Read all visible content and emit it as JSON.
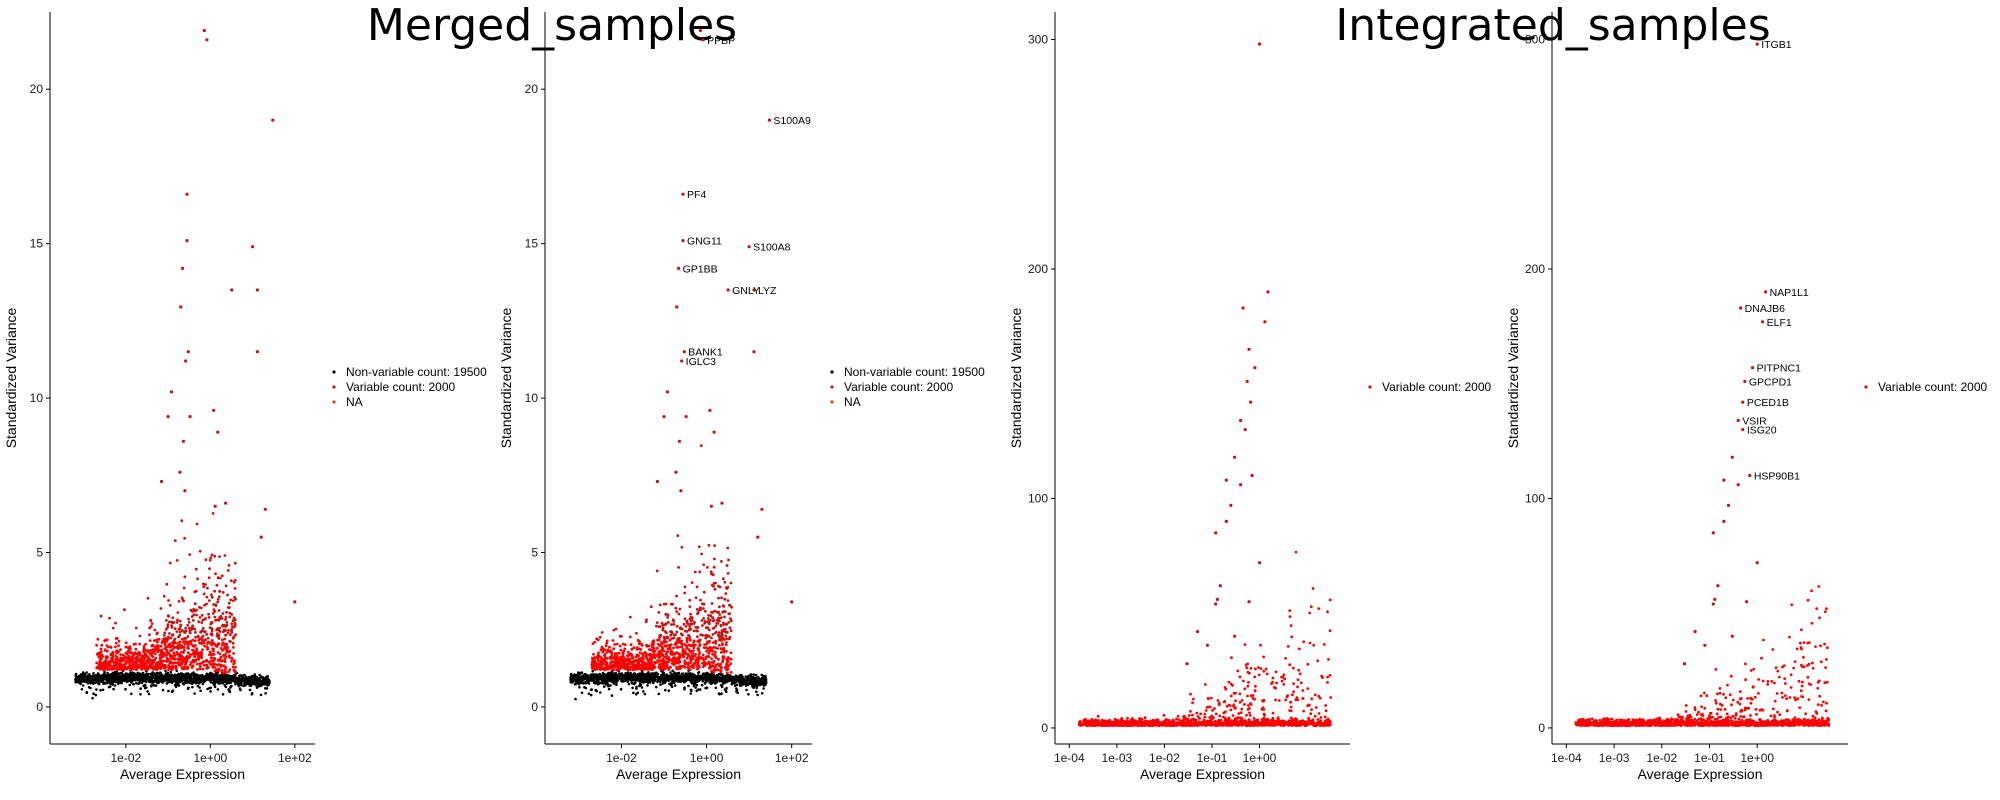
{
  "figure": {
    "titles": [
      "Merged_samples",
      "Integrated_samples"
    ]
  },
  "colors": {
    "non_variable": "#000000",
    "variable": "#cc1111",
    "variable_bright": "#ff0000",
    "na": "#ff3333",
    "axis": "#000000"
  },
  "chart_data": [
    {
      "type": "scatter",
      "title": "",
      "xlabel": "Average Expression",
      "ylabel": "Standardized Variance",
      "x_scale": "log10",
      "xlim": [
        0.00016,
        300
      ],
      "ylim": [
        -1.2,
        22.5
      ],
      "x_ticks": [
        {
          "value": 0.01,
          "label": "1e-02"
        },
        {
          "value": 1,
          "label": "1e+00"
        },
        {
          "value": 100,
          "label": "1e+02"
        }
      ],
      "y_ticks": [
        {
          "value": 0,
          "label": "0"
        },
        {
          "value": 5,
          "label": "5"
        },
        {
          "value": 10,
          "label": "10"
        },
        {
          "value": 15,
          "label": "15"
        },
        {
          "value": 20,
          "label": "20"
        }
      ],
      "legend": [
        "Non-variable count: 19500",
        "Variable count: 2000",
        "NA"
      ],
      "legend_position": "right",
      "series": [
        {
          "name": "Variable count: 2000",
          "points": [
            [
              0.72,
              21.9
            ],
            [
              0.83,
              21.6
            ],
            [
              30,
              19.0
            ],
            [
              0.28,
              16.6
            ],
            [
              0.28,
              15.1
            ],
            [
              10,
              14.9
            ],
            [
              0.22,
              14.2
            ],
            [
              3.2,
              13.5
            ],
            [
              13,
              13.5
            ],
            [
              0.2,
              12.95
            ],
            [
              0.3,
              11.5
            ],
            [
              13,
              11.5
            ],
            [
              0.26,
              11.2
            ],
            [
              0.12,
              10.2
            ],
            [
              1.2,
              9.6
            ],
            [
              0.1,
              9.4
            ],
            [
              0.33,
              9.4
            ],
            [
              1.5,
              8.9
            ],
            [
              0.23,
              8.6
            ],
            [
              0.19,
              7.6
            ],
            [
              0.07,
              7.3
            ],
            [
              0.25,
              7.0
            ],
            [
              1.3,
              6.5
            ],
            [
              2.3,
              6.6
            ],
            [
              20,
              6.4
            ],
            [
              16,
              5.5
            ],
            [
              100,
              3.4
            ]
          ]
        },
        {
          "name": "Non-variable count: 19500",
          "points": []
        },
        {
          "name": "NA",
          "points": []
        }
      ],
      "labels": []
    },
    {
      "type": "scatter",
      "title": "",
      "xlabel": "Average Expression",
      "ylabel": "Standardized Variance",
      "x_scale": "log10",
      "xlim": [
        0.00016,
        300
      ],
      "ylim": [
        -1.2,
        22.5
      ],
      "x_ticks": [
        {
          "value": 0.01,
          "label": "1e-02"
        },
        {
          "value": 1,
          "label": "1e+00"
        },
        {
          "value": 100,
          "label": "1e+02"
        }
      ],
      "y_ticks": [
        {
          "value": 0,
          "label": "0"
        },
        {
          "value": 5,
          "label": "5"
        },
        {
          "value": 10,
          "label": "10"
        },
        {
          "value": 15,
          "label": "15"
        },
        {
          "value": 20,
          "label": "20"
        }
      ],
      "legend": [
        "Non-variable count: 19500",
        "Variable count: 2000",
        "NA"
      ],
      "legend_position": "right",
      "series": [
        {
          "name": "Variable count: 2000",
          "points": [
            [
              0.72,
              21.9
            ],
            [
              0.83,
              21.6
            ],
            [
              30,
              19.0
            ],
            [
              0.28,
              16.6
            ],
            [
              0.28,
              15.1
            ],
            [
              10,
              14.9
            ],
            [
              0.22,
              14.2
            ],
            [
              3.2,
              13.5
            ],
            [
              13,
              13.5
            ],
            [
              0.2,
              12.95
            ],
            [
              0.3,
              11.5
            ],
            [
              13,
              11.5
            ],
            [
              0.26,
              11.2
            ],
            [
              0.12,
              10.2
            ],
            [
              1.2,
              9.6
            ],
            [
              0.1,
              9.4
            ],
            [
              0.33,
              9.4
            ],
            [
              1.5,
              8.9
            ],
            [
              0.23,
              8.6
            ],
            [
              0.19,
              7.6
            ],
            [
              0.07,
              7.3
            ],
            [
              0.25,
              7.0
            ],
            [
              1.3,
              6.5
            ],
            [
              2.3,
              6.6
            ],
            [
              20,
              6.4
            ],
            [
              16,
              5.5
            ],
            [
              100,
              3.4
            ]
          ]
        },
        {
          "name": "Non-variable count: 19500",
          "points": []
        },
        {
          "name": "NA",
          "points": []
        }
      ],
      "labels": [
        {
          "text": "PPBP",
          "x": 0.83,
          "y": 21.6
        },
        {
          "text": "S100A9",
          "x": 30,
          "y": 19.0
        },
        {
          "text": "PF4",
          "x": 0.28,
          "y": 16.6
        },
        {
          "text": "GNG11",
          "x": 0.28,
          "y": 15.1
        },
        {
          "text": "S100A8",
          "x": 10,
          "y": 14.9
        },
        {
          "text": "GP1BB",
          "x": 0.22,
          "y": 14.2
        },
        {
          "text": "GNLY",
          "x": 3.2,
          "y": 13.5
        },
        {
          "text": "LYZ",
          "x": 13,
          "y": 13.5
        },
        {
          "text": "BANK1",
          "x": 0.3,
          "y": 11.5
        },
        {
          "text": "IGLC3",
          "x": 0.26,
          "y": 11.2
        }
      ]
    },
    {
      "type": "scatter",
      "title": "",
      "xlabel": "Average Expression",
      "ylabel": "Standardized Variance",
      "x_scale": "log10",
      "xlim": [
        5e-05,
        80
      ],
      "ylim": [
        -7,
        312
      ],
      "x_ticks": [
        {
          "value": 0.0001,
          "label": "1e-04"
        },
        {
          "value": 0.001,
          "label": "1e-03"
        },
        {
          "value": 0.01,
          "label": "1e-02"
        },
        {
          "value": 0.1,
          "label": "1e-01"
        },
        {
          "value": 1,
          "label": "1e+00"
        }
      ],
      "y_ticks": [
        {
          "value": 0,
          "label": "0"
        },
        {
          "value": 100,
          "label": "100"
        },
        {
          "value": 200,
          "label": "200"
        },
        {
          "value": 300,
          "label": "300"
        }
      ],
      "legend": [
        "Variable count: 2000"
      ],
      "legend_position": "right",
      "series": [
        {
          "name": "Variable count: 2000",
          "points": [
            [
              1.0,
              298
            ],
            [
              1.5,
              190
            ],
            [
              1.3,
              177
            ],
            [
              0.45,
              183
            ],
            [
              0.6,
              165
            ],
            [
              0.8,
              157
            ],
            [
              0.55,
              151
            ],
            [
              0.65,
              142
            ],
            [
              0.4,
              134
            ],
            [
              0.5,
              130
            ],
            [
              0.3,
              118
            ],
            [
              0.7,
              110
            ],
            [
              0.4,
              106
            ],
            [
              0.2,
              108
            ],
            [
              0.25,
              97
            ],
            [
              0.12,
              85
            ],
            [
              0.2,
              90
            ],
            [
              1.0,
              72
            ],
            [
              0.15,
              62
            ],
            [
              0.13,
              56
            ],
            [
              0.12,
              54
            ],
            [
              0.6,
              55
            ],
            [
              0.05,
              42
            ],
            [
              0.3,
              40
            ],
            [
              0.08,
              36
            ],
            [
              0.03,
              28
            ]
          ]
        }
      ],
      "labels": []
    },
    {
      "type": "scatter",
      "title": "",
      "xlabel": "Average Expression",
      "ylabel": "Standardized Variance",
      "x_scale": "log10",
      "xlim": [
        5e-05,
        80
      ],
      "ylim": [
        -7,
        312
      ],
      "x_ticks": [
        {
          "value": 0.0001,
          "label": "1e-04"
        },
        {
          "value": 0.001,
          "label": "1e-03"
        },
        {
          "value": 0.01,
          "label": "1e-02"
        },
        {
          "value": 0.1,
          "label": "1e-01"
        },
        {
          "value": 1,
          "label": "1e+00"
        }
      ],
      "y_ticks": [
        {
          "value": 0,
          "label": "0"
        },
        {
          "value": 100,
          "label": "100"
        },
        {
          "value": 200,
          "label": "200"
        },
        {
          "value": 300,
          "label": "300"
        }
      ],
      "legend": [
        "Variable count: 2000"
      ],
      "legend_position": "right",
      "series": [
        {
          "name": "Variable count: 2000",
          "points": [
            [
              1.0,
              298
            ],
            [
              1.5,
              190
            ],
            [
              0.45,
              183
            ],
            [
              1.3,
              177
            ],
            [
              0.8,
              157
            ],
            [
              0.55,
              151
            ],
            [
              0.5,
              142
            ],
            [
              0.4,
              134
            ],
            [
              0.5,
              130
            ],
            [
              0.7,
              110
            ],
            [
              0.3,
              118
            ],
            [
              0.4,
              106
            ],
            [
              0.2,
              108
            ],
            [
              0.25,
              97
            ],
            [
              0.12,
              85
            ],
            [
              0.2,
              90
            ],
            [
              1.0,
              72
            ],
            [
              0.15,
              62
            ],
            [
              0.13,
              56
            ],
            [
              0.12,
              54
            ],
            [
              0.6,
              55
            ],
            [
              0.05,
              42
            ],
            [
              0.3,
              40
            ],
            [
              0.08,
              36
            ],
            [
              0.03,
              28
            ]
          ]
        }
      ],
      "labels": [
        {
          "text": "ITGB1",
          "x": 1.0,
          "y": 298
        },
        {
          "text": "NAP1L1",
          "x": 1.5,
          "y": 190
        },
        {
          "text": "DNAJB6",
          "x": 0.45,
          "y": 183
        },
        {
          "text": "ELF1",
          "x": 1.3,
          "y": 177
        },
        {
          "text": "PITPNC1",
          "x": 0.8,
          "y": 157
        },
        {
          "text": "GPCPD1",
          "x": 0.55,
          "y": 151
        },
        {
          "text": "PCED1B",
          "x": 0.5,
          "y": 142
        },
        {
          "text": "VSIR",
          "x": 0.4,
          "y": 134
        },
        {
          "text": "ISG20",
          "x": 0.5,
          "y": 130
        },
        {
          "text": "HSP90B1",
          "x": 0.7,
          "y": 110
        }
      ]
    }
  ]
}
